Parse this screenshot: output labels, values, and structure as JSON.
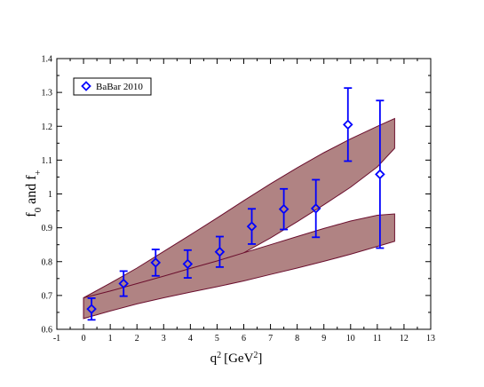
{
  "chart_data": {
    "type": "scatter",
    "xlabel": "q",
    "xlabel_sup": "2",
    "xlabel_unit": "[GeV",
    "xlabel_unit_sup": "2",
    "xlabel_close": "]",
    "ylabel_parts": {
      "f1": "f",
      "sub1": "0",
      "mid": " and f",
      "sub2": "+"
    },
    "xlim": [
      -1,
      13
    ],
    "ylim": [
      0.6,
      1.4
    ],
    "xticks": [
      -1,
      0,
      1,
      2,
      3,
      4,
      5,
      6,
      7,
      8,
      9,
      10,
      11,
      12,
      13
    ],
    "yticks": [
      0.6,
      0.7,
      0.8,
      0.9,
      1,
      1.1,
      1.2,
      1.3,
      1.4
    ],
    "legend": {
      "label": "BaBar 2010",
      "placement": "top-left"
    },
    "series": [
      {
        "name": "BaBar 2010",
        "marker": "diamond",
        "color": "#0000ff",
        "points": [
          {
            "x": 0.3,
            "y": 0.66,
            "ylow": 0.628,
            "yhigh": 0.692
          },
          {
            "x": 1.5,
            "y": 0.735,
            "ylow": 0.698,
            "yhigh": 0.772
          },
          {
            "x": 2.7,
            "y": 0.797,
            "ylow": 0.758,
            "yhigh": 0.836
          },
          {
            "x": 3.9,
            "y": 0.793,
            "ylow": 0.752,
            "yhigh": 0.834
          },
          {
            "x": 5.1,
            "y": 0.829,
            "ylow": 0.784,
            "yhigh": 0.874
          },
          {
            "x": 6.3,
            "y": 0.904,
            "ylow": 0.852,
            "yhigh": 0.956
          },
          {
            "x": 7.5,
            "y": 0.955,
            "ylow": 0.895,
            "yhigh": 1.015
          },
          {
            "x": 8.7,
            "y": 0.957,
            "ylow": 0.872,
            "yhigh": 1.042
          },
          {
            "x": 9.9,
            "y": 1.205,
            "ylow": 1.097,
            "yhigh": 1.313
          },
          {
            "x": 11.1,
            "y": 1.058,
            "ylow": 0.84,
            "yhigh": 1.276
          }
        ]
      }
    ],
    "bands": [
      {
        "fill": "#b08383",
        "stroke": "#6b0f2e",
        "x": [
          0,
          1,
          2,
          3,
          4,
          5,
          6,
          7,
          8,
          9,
          10,
          11,
          11.65
        ],
        "upper": [
          0.693,
          0.736,
          0.781,
          0.83,
          0.879,
          0.929,
          0.98,
          1.03,
          1.077,
          1.122,
          1.163,
          1.2,
          1.223
        ],
        "lower": [
          0.632,
          0.655,
          0.682,
          0.713,
          0.747,
          0.785,
          0.826,
          0.87,
          0.918,
          0.968,
          1.02,
          1.08,
          1.135
        ]
      },
      {
        "fill": "#b08383",
        "stroke": "#6b0f2e",
        "x": [
          0,
          1,
          2,
          3,
          4,
          5,
          6,
          7,
          8,
          9,
          10,
          11,
          11.65
        ],
        "upper": [
          0.693,
          0.713,
          0.735,
          0.757,
          0.78,
          0.802,
          0.826,
          0.85,
          0.874,
          0.898,
          0.92,
          0.937,
          0.941
        ],
        "lower": [
          0.632,
          0.654,
          0.675,
          0.693,
          0.71,
          0.726,
          0.743,
          0.762,
          0.781,
          0.801,
          0.822,
          0.845,
          0.86
        ]
      }
    ]
  }
}
